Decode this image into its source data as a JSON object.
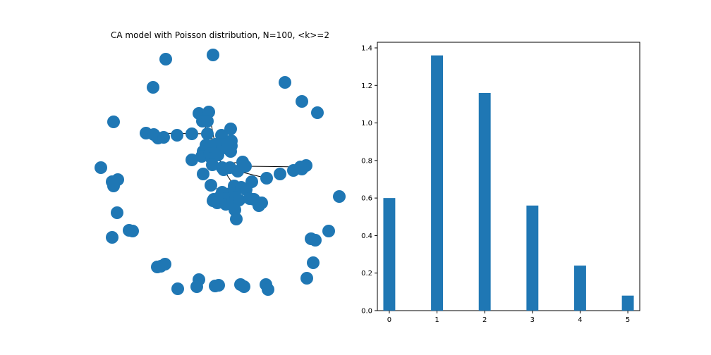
{
  "chart_data": [
    {
      "type": "network",
      "title": "CA model with Poisson distribution, N=100, <k>=2",
      "node_color": "#1f77b4",
      "edge_color": "#000000",
      "axes_visible": false,
      "node_count_visible": 100
    },
    {
      "type": "bar",
      "title": "",
      "xlabel": "",
      "ylabel": "",
      "x": [
        0,
        1,
        2,
        3,
        4,
        5
      ],
      "values": [
        0.6,
        1.36,
        1.16,
        0.56,
        0.24,
        0.08
      ],
      "xlim": [
        -0.25,
        5.25
      ],
      "ylim": [
        0,
        1.43
      ],
      "xticks": [
        "0",
        "1",
        "2",
        "3",
        "4",
        "5"
      ],
      "yticks": [
        "0.0",
        "0.2",
        "0.4",
        "0.6",
        "0.8",
        "1.0",
        "1.2",
        "1.4"
      ],
      "bar_color": "#1f77b4",
      "grid": false,
      "legend": false
    }
  ]
}
